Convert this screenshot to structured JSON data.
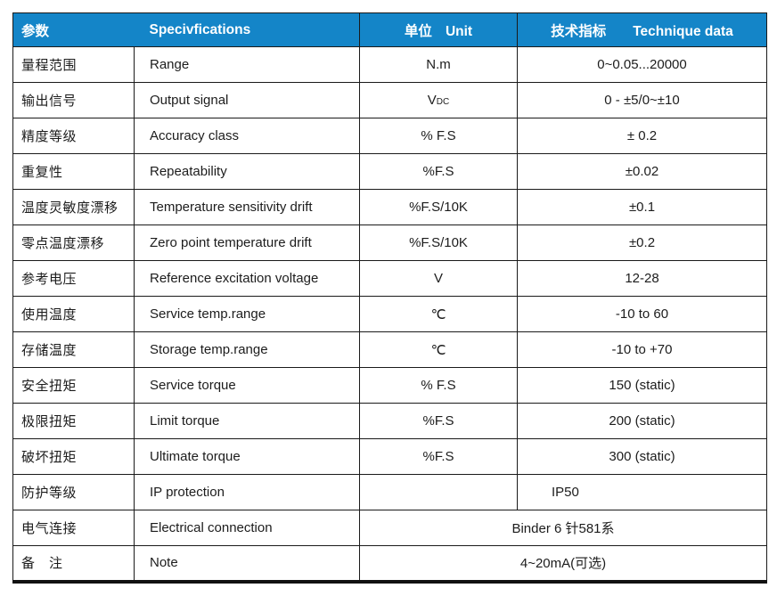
{
  "colors": {
    "header_bg": "#1485c8",
    "header_text": "#ffffff",
    "body_text": "#1c1c1c",
    "border": "#1a1a1a"
  },
  "header": {
    "col1_cn": "参数",
    "col2_en": "Specivfications",
    "col3_cn": "单位",
    "col3_en": "Unit",
    "col4_cn": "技术指标",
    "col4_en": "Technique data"
  },
  "rows": [
    {
      "param": "量程范围",
      "spec": "Range",
      "unit": "N.m",
      "value": "0~0.05...20000"
    },
    {
      "param": "输出信号",
      "spec": "Output signal",
      "unit": "V",
      "unit_sub": "DC",
      "value": "0 - ±5/0~±10"
    },
    {
      "param": "精度等级",
      "spec": "Accuracy class",
      "unit": "% F.S",
      "value": "± 0.2"
    },
    {
      "param": "重复性",
      "spec": "Repeatability",
      "unit": "%F.S",
      "value": "±0.02"
    },
    {
      "param": "温度灵敏度漂移",
      "spec": "Temperature sensitivity drift",
      "unit": "%F.S/10K",
      "value": "±0.1"
    },
    {
      "param": "零点温度漂移",
      "spec": "Zero point temperature drift",
      "unit": "%F.S/10K",
      "value": "±0.2"
    },
    {
      "param": "参考电压",
      "spec": "Reference excitation voltage",
      "unit": "V",
      "value": "12-28"
    },
    {
      "param": "使用温度",
      "spec": "Service temp.range",
      "unit": "℃",
      "value": "-10 to 60"
    },
    {
      "param": "存储温度",
      "spec": "Storage temp.range",
      "unit": "℃",
      "value": "-10 to +70"
    },
    {
      "param": "安全扭矩",
      "spec": "Service torque",
      "unit": "% F.S",
      "value": "150 (static)"
    },
    {
      "param": "极限扭矩",
      "spec": "Limit torque",
      "unit": "%F.S",
      "value": "200 (static)"
    },
    {
      "param": "破坏扭矩",
      "spec": "Ultimate torque",
      "unit": "%F.S",
      "value": "300 (static)"
    },
    {
      "param": "防护等级",
      "spec": "IP protection",
      "unit": "",
      "value": "IP50",
      "value_offset_left": true
    },
    {
      "param": "电气连接",
      "spec": "Electrical connection",
      "merged_value": "Binder 6 针581系"
    },
    {
      "param": "备　注",
      "spec": "Note",
      "merged_value": "4~20mA(可选)"
    }
  ]
}
